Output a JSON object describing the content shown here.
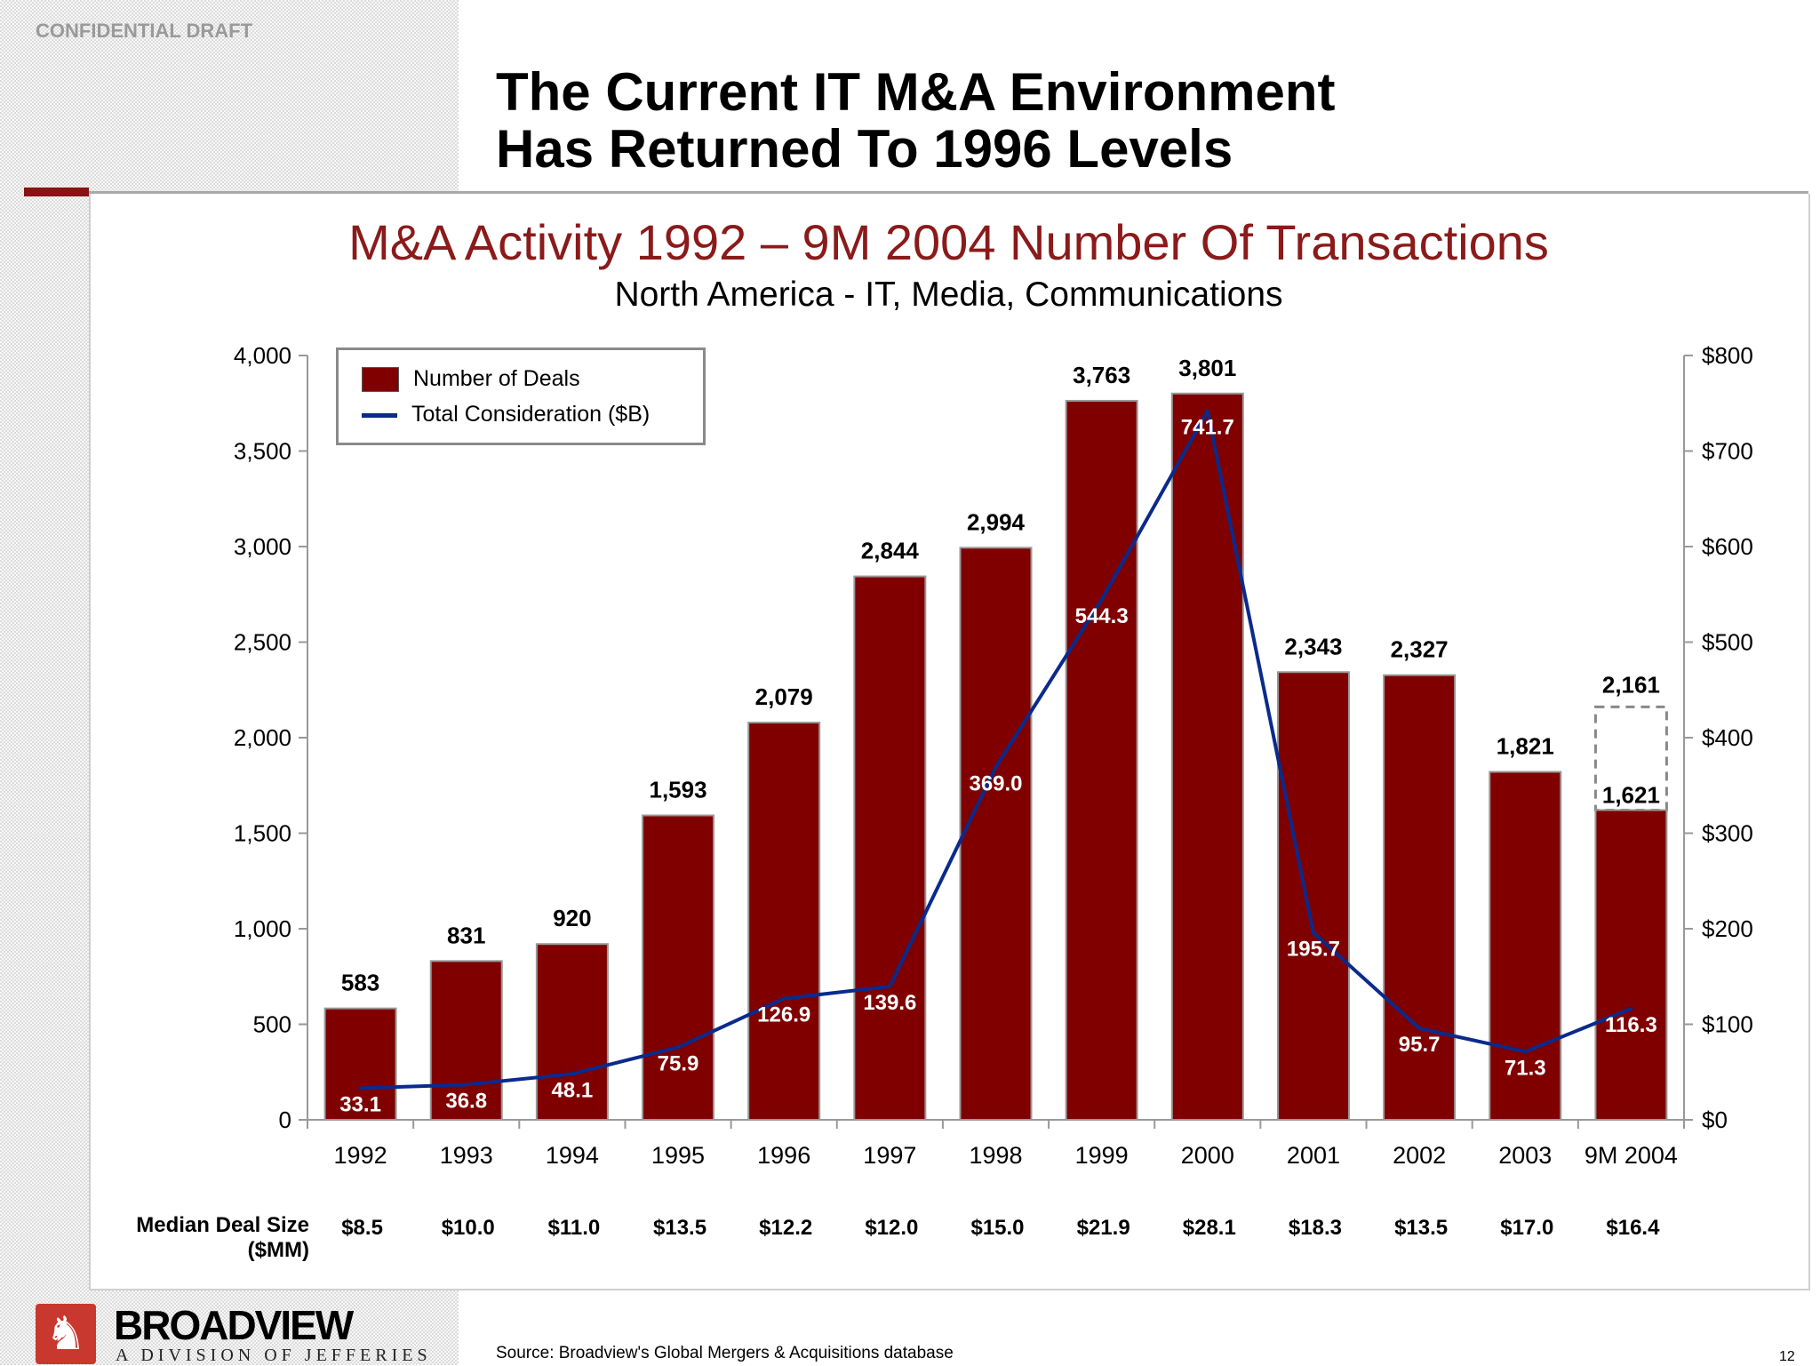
{
  "header": {
    "confidential": "CONFIDENTIAL DRAFT",
    "title_line1": "The Current IT M&A Environment",
    "title_line2": "Has Returned To 1996 Levels"
  },
  "colors": {
    "bar": "#800000",
    "line": "#0a2a8c",
    "title": "#8b1a1a",
    "accent": "#8b1212"
  },
  "chart_data": {
    "type": "bar",
    "title": "M&A Activity 1992 – 9M 2004 Number Of Transactions",
    "subtitle": "North America - IT, Media, Communications",
    "categories": [
      "1992",
      "1993",
      "1994",
      "1995",
      "1996",
      "1997",
      "1998",
      "1999",
      "2000",
      "2001",
      "2002",
      "2003",
      "9M 2004"
    ],
    "series": [
      {
        "name": "Number of Deals",
        "type": "bar",
        "axis": "left",
        "values": [
          583,
          831,
          920,
          1593,
          2079,
          2844,
          2994,
          3763,
          3801,
          2343,
          2327,
          1821,
          1621
        ],
        "labels": [
          "583",
          "831",
          "920",
          "1,593",
          "2,079",
          "2,844",
          "2,994",
          "3,763",
          "3,801",
          "2,343",
          "2,327",
          "1,821",
          "1,621"
        ]
      },
      {
        "name": "Total Consideration ($B)",
        "type": "line",
        "axis": "right",
        "values": [
          33.1,
          36.8,
          48.1,
          75.9,
          126.9,
          139.6,
          369.0,
          544.3,
          741.7,
          195.7,
          95.7,
          71.3,
          116.3
        ],
        "labels": [
          "33.1",
          "36.8",
          "48.1",
          "75.9",
          "126.9",
          "139.6",
          "369.0",
          "544.3",
          "741.7",
          "195.7",
          "95.7",
          "71.3",
          "116.3"
        ]
      }
    ],
    "annualized_estimate": {
      "category": "9M 2004",
      "value": 2161,
      "label": "2,161"
    },
    "y_left": {
      "range": [
        0,
        4000
      ],
      "ticks": [
        "0",
        "500",
        "1,000",
        "1,500",
        "2,000",
        "2,500",
        "3,000",
        "3,500",
        "4,000"
      ]
    },
    "y_right": {
      "range": [
        0,
        800
      ],
      "ticks": [
        "$0",
        "$100",
        "$200",
        "$300",
        "$400",
        "$500",
        "$600",
        "$700",
        "$800"
      ]
    },
    "legend": {
      "placement": "top-left",
      "items": [
        "Number of Deals",
        "Total Consideration ($B)"
      ]
    },
    "grid": false,
    "median_deal_size": {
      "label_line1": "Median Deal Size",
      "label_line2": "($MM)",
      "values": [
        "$8.5",
        "$10.0",
        "$11.0",
        "$13.5",
        "$12.2",
        "$12.0",
        "$15.0",
        "$21.9",
        "$28.1",
        "$18.3",
        "$13.5",
        "$17.0",
        "$16.4"
      ]
    }
  },
  "footer": {
    "brand": "BROADVIEW",
    "brand_sub": "A DIVISION OF JEFFERIES",
    "source": "Source:  Broadview's Global Mergers & Acquisitions database",
    "page_number": "12"
  }
}
